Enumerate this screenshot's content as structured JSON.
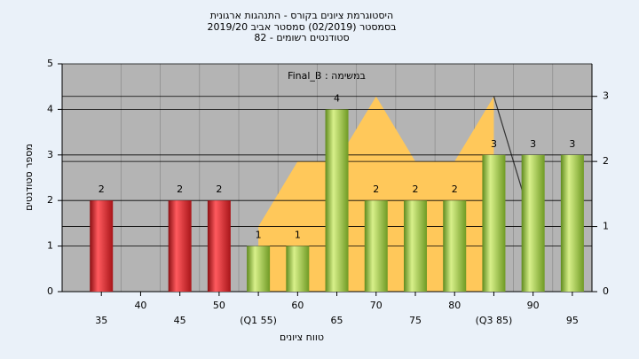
{
  "chart_data": {
    "type": "bar",
    "title": [
      "היסטוגרמת ציונים בקורס - התנהגות ארגונית",
      "בסמסטר  (02/2019)  סמסטר אביב 2019/20",
      "סטודנטים רשומים - 82"
    ],
    "annotation": "Final_B : במשימה",
    "y_label": "מספר סטודנטים",
    "x_label": "טווח ציונים",
    "categories": [
      "35",
      "40",
      "45",
      "50",
      "(Q1 55)",
      "60",
      "65",
      "70",
      "75",
      "80",
      "(Q3 85)",
      "90",
      "95"
    ],
    "values": [
      2,
      null,
      2,
      2,
      1,
      1,
      4,
      2,
      2,
      2,
      3,
      3,
      3
    ],
    "colors": [
      "#e0262b",
      null,
      "#e0262b",
      "#e0262b",
      "#9cc63c",
      "#9cc63c",
      "#9cc63c",
      "#9cc63c",
      "#9cc63c",
      "#9cc63c",
      "#9cc63c",
      "#9cc63c",
      "#9cc63c"
    ],
    "ylim": [
      0,
      5
    ],
    "yticks": [
      0,
      1,
      2,
      3,
      4,
      5
    ],
    "y2lim": [
      0,
      3.5
    ],
    "y2ticks": [
      0,
      1,
      2,
      3
    ],
    "series": [
      {
        "type": "area",
        "axis": "y2",
        "color": "#ffc85a",
        "values": [
          null,
          null,
          null,
          null,
          1,
          2,
          2,
          3,
          2,
          2,
          3,
          null,
          null
        ]
      },
      {
        "type": "line",
        "axis": "y2",
        "color": "#333333",
        "values": [
          null,
          null,
          null,
          null,
          null,
          null,
          null,
          null,
          null,
          null,
          3,
          1,
          null
        ]
      }
    ],
    "grid": true
  }
}
